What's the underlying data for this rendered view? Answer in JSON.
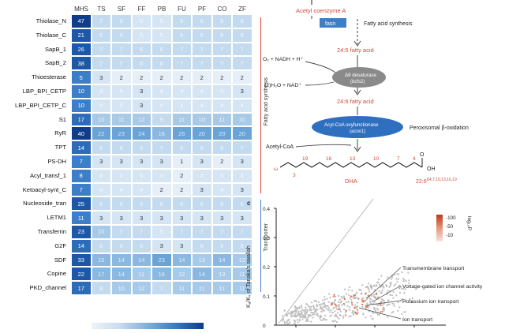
{
  "heatmap": {
    "columns": [
      "MHS",
      "TS",
      "SF",
      "FF",
      "PB",
      "FU",
      "PF",
      "CO",
      "ZF"
    ],
    "rows": [
      {
        "label": "Thiolase_N",
        "values": [
          "47",
          "7",
          "6",
          "5",
          "5",
          "6",
          "6",
          "6",
          "6"
        ]
      },
      {
        "label": "Thiolase_C",
        "values": [
          "21",
          "6",
          "6",
          "5",
          "5",
          "6",
          "6",
          "6",
          "6"
        ]
      },
      {
        "label": "SapB_1",
        "values": [
          "26",
          "7",
          "7",
          "6",
          "6",
          "7",
          "7",
          "7",
          "7"
        ]
      },
      {
        "label": "SapB_2",
        "values": [
          "38",
          "7",
          "7",
          "6",
          "6",
          "7",
          "7",
          "7",
          "7"
        ]
      },
      {
        "label": "Thioesterase",
        "values": [
          "5",
          "3",
          "2",
          "2",
          "2",
          "2",
          "2",
          "2",
          "2"
        ]
      },
      {
        "label": "LBP_BPI_CETP",
        "values": [
          "10",
          "4",
          "5",
          "3",
          "4",
          "4",
          "4",
          "5",
          "3"
        ]
      },
      {
        "label": "LBP_BPI_CETP_C",
        "values": [
          "10",
          "4",
          "5",
          "3",
          "4",
          "4",
          "4",
          "4",
          "4"
        ]
      },
      {
        "label": "S1",
        "values": [
          "17",
          "10",
          "11",
          "12",
          "9",
          "11",
          "10",
          "11",
          "10"
        ]
      },
      {
        "label": "RyR",
        "values": [
          "40",
          "22",
          "23",
          "24",
          "16",
          "26",
          "20",
          "20",
          "20"
        ]
      },
      {
        "label": "TPT",
        "values": [
          "14",
          "6",
          "8",
          "6",
          "7",
          "8",
          "9",
          "8",
          "7"
        ]
      },
      {
        "label": "PS-DH",
        "values": [
          "7",
          "3",
          "3",
          "3",
          "3",
          "1",
          "3",
          "2",
          "3"
        ]
      },
      {
        "label": "Acyl_transf_1",
        "values": [
          "8",
          "4",
          "4",
          "4",
          "4",
          "2",
          "4",
          "4",
          "4"
        ]
      },
      {
        "label": "Ketoacyl-synt_C",
        "values": [
          "7",
          "4",
          "4",
          "4",
          "2",
          "2",
          "3",
          "4",
          "3"
        ]
      },
      {
        "label": "Nucleoside_tran",
        "values": [
          "25",
          "6",
          "6",
          "6",
          "6",
          "6",
          "6",
          "6",
          "6"
        ]
      },
      {
        "label": "LETM1",
        "values": [
          "11",
          "3",
          "3",
          "3",
          "3",
          "3",
          "3",
          "3",
          "3"
        ]
      },
      {
        "label": "Transferrin",
        "values": [
          "23",
          "10",
          "7",
          "7",
          "5",
          "7",
          "7",
          "7",
          "7"
        ]
      },
      {
        "label": "G2F",
        "values": [
          "14",
          "6",
          "6",
          "6",
          "3",
          "3",
          "6",
          "6",
          "6"
        ]
      },
      {
        "label": "SDF",
        "values": [
          "33",
          "15",
          "14",
          "14",
          "23",
          "14",
          "13",
          "14",
          "13"
        ]
      },
      {
        "label": "Copine",
        "values": [
          "22",
          "17",
          "14",
          "11",
          "16",
          "12",
          "14",
          "13",
          "11"
        ]
      },
      {
        "label": "PKD_channel",
        "values": [
          "17",
          "8",
          "10",
          "12",
          "7",
          "11",
          "11",
          "11",
          "11"
        ]
      }
    ],
    "groups": [
      {
        "label": "Fatty acid synthesis",
        "color": "#e0473c"
      },
      {
        "label": "Transporter",
        "color": "#4a7fc0"
      }
    ]
  },
  "pathway": {
    "top_label": "Acetyl coenzyme A",
    "fasn_label": "fasn",
    "fas_text": "Fatty acid synthesis",
    "fa1": "24:5 fatty acid",
    "in1": "O₂ + NADH + H⁺",
    "desat_line1": "Δ6 desaturase",
    "desat_line2": "(bcfs2)",
    "out1": "(2)H₂O + NAD⁺",
    "fa2": "24:6 fatty acid",
    "acox_line1": "Acyl-CoA oxyfunctionase",
    "acox_line2": "(acox1)",
    "perox_text": "Peroxisomal β-oxidation",
    "acetyl_coa": "Acetyl-CoA",
    "chain_numbers": [
      "19",
      "16",
      "13",
      "10",
      "7",
      "4"
    ],
    "chain_start": "ω",
    "chain_3": "3",
    "carbonyl_o": "O",
    "carbonyl_oh": "OH",
    "dha": "DHA",
    "dha_formula": "22:6",
    "dha_positions": "Δ4,7,10,13,16,19"
  },
  "scatter": {
    "panel_letter": "c",
    "ylabel": "Kₐ/Kₛ of Tanaka's swallah",
    "yticks": [
      "0.4",
      "0.3",
      "0.2",
      "0.1",
      "0"
    ],
    "legend_values": [
      "-100",
      "-50",
      "-10"
    ],
    "legend_title": "log₁₀P",
    "annotations": [
      "Transmembrane transport",
      "Voltage-gated ion channel activity",
      "Potassium ion transport",
      "Ion transport"
    ]
  }
}
